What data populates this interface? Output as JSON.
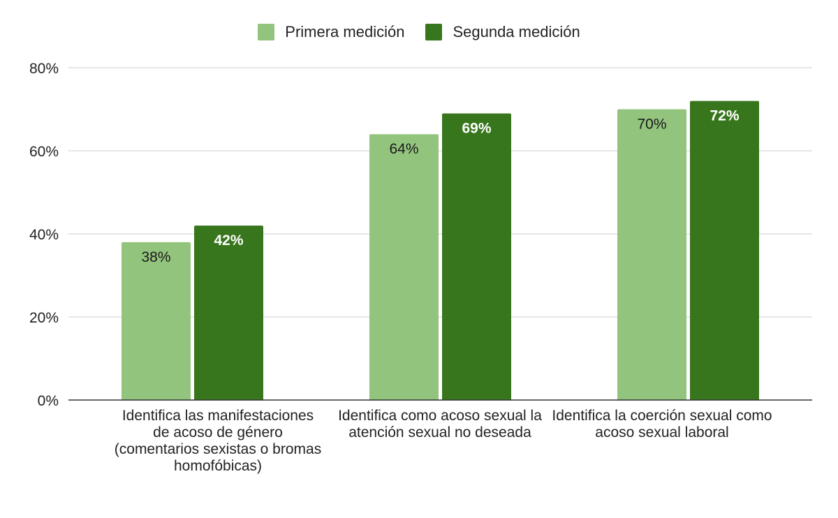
{
  "chart_data": {
    "type": "bar",
    "categories": [
      "Identifica las manifestaciones de acoso de género (comentarios sexistas o bromas homofóbicas)",
      "Identifica como acoso sexual la atención sexual no deseada",
      "Identifica la coerción sexual como acoso sexual laboral"
    ],
    "series": [
      {
        "name": "Primera medición",
        "values": [
          38,
          64,
          70
        ],
        "labels": [
          "38%",
          "64%",
          "70%"
        ],
        "color": "#93c47d",
        "label_color": "#1a1a1a"
      },
      {
        "name": "Segunda medición",
        "values": [
          42,
          69,
          72
        ],
        "labels": [
          "42%",
          "69%",
          "72%"
        ],
        "color": "#38761d",
        "label_color": "#ffffff"
      }
    ],
    "ylim": [
      0,
      80
    ],
    "yticks": [
      "0%",
      "20%",
      "40%",
      "60%",
      "80%"
    ],
    "ytick_values": [
      0,
      20,
      40,
      60,
      80
    ],
    "grid": true,
    "legend_position": "top-center",
    "title": "",
    "xlabel": "",
    "ylabel": ""
  }
}
